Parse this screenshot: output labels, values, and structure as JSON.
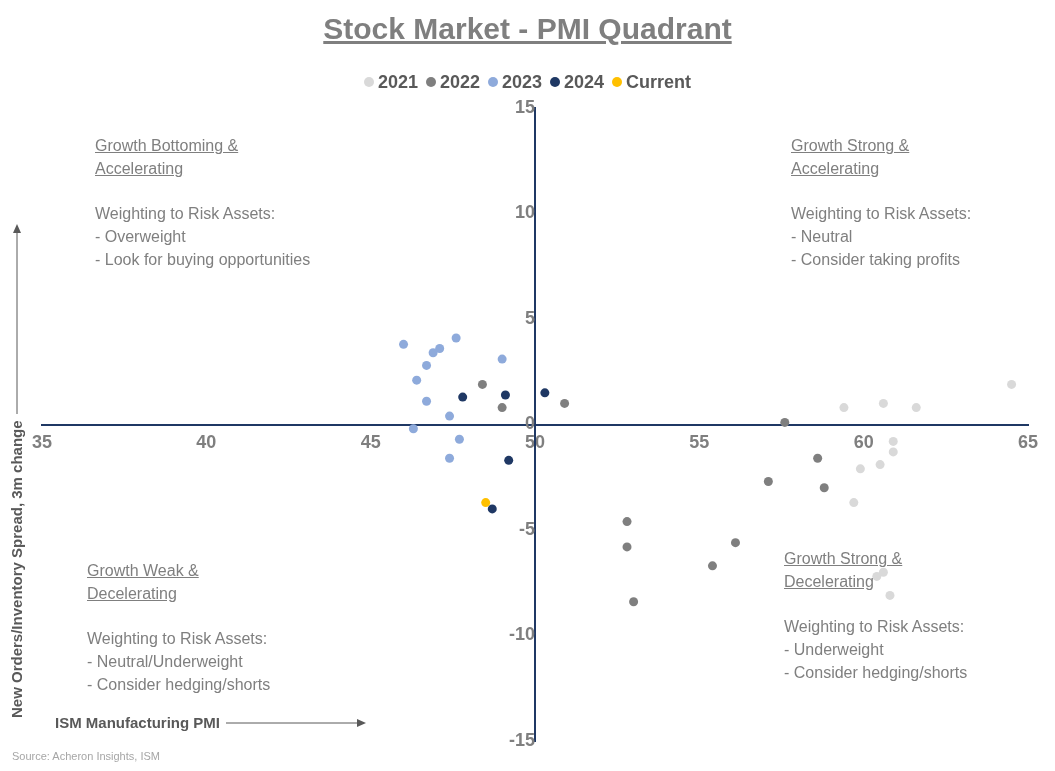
{
  "chart_data": {
    "type": "scatter",
    "title": "Stock Market - PMI Quadrant",
    "x_label": "ISM Manufacturing PMI",
    "y_label": "New Orders/Inventory Spread, 3m change",
    "source": "Source: Acheron Insights, ISM",
    "xlim": [
      35,
      65
    ],
    "xticks": [
      35,
      40,
      45,
      50,
      55,
      60,
      65
    ],
    "ylim": [
      -15,
      15
    ],
    "yticks": [
      -15,
      -10,
      -5,
      0,
      5,
      10,
      15
    ],
    "grid": false,
    "legend": "top",
    "series": [
      {
        "name": "2021",
        "color": "#d9d9d9",
        "x": [
          64.5,
          59.4,
          60.6,
          61.6,
          60.9,
          60.9,
          60.5,
          59.9,
          59.7,
          60.6,
          60.4,
          60.8
        ],
        "values": [
          1.9,
          0.8,
          1.0,
          0.8,
          -0.8,
          -1.3,
          -1.9,
          -2.1,
          -3.7,
          -7.0,
          -7.2,
          -8.1
        ]
      },
      {
        "name": "2022",
        "color": "#7f7f7f",
        "x": [
          57.6,
          58.6,
          58.8,
          57.1,
          56.1,
          55.4,
          52.8,
          52.8,
          53.0,
          50.9,
          48.4,
          49.0
        ],
        "values": [
          0.1,
          -1.6,
          -3.0,
          -2.7,
          -5.6,
          -6.7,
          -4.6,
          -5.8,
          -8.4,
          1.0,
          1.9,
          0.8
        ]
      },
      {
        "name": "2023",
        "color": "#8eaadb",
        "x": [
          46.0,
          47.6,
          47.1,
          46.9,
          46.7,
          49.0,
          46.4,
          46.7,
          47.4,
          46.3,
          47.7,
          47.4
        ],
        "values": [
          3.8,
          4.1,
          3.6,
          3.4,
          2.8,
          3.1,
          2.1,
          1.1,
          0.4,
          -0.2,
          -0.7,
          -1.6
        ]
      },
      {
        "name": "2024",
        "color": "#1f3864",
        "x": [
          47.8,
          49.1,
          50.3,
          49.2,
          48.7
        ],
        "values": [
          1.3,
          1.4,
          1.5,
          -1.7,
          -4.0
        ]
      },
      {
        "name": "Current",
        "color": "#ffc000",
        "x": [
          48.5
        ],
        "values": [
          -3.7
        ]
      }
    ],
    "annotations": [
      {
        "title": "Growth Bottoming & Accelerating",
        "text": [
          "Weighting to Risk Assets:",
          "- Overweight",
          "- Look for buying opportunities"
        ]
      },
      {
        "title": "Growth Strong & Accelerating",
        "text": [
          "Weighting to Risk Assets:",
          "- Neutral",
          "- Consider taking profits"
        ]
      },
      {
        "title": "Growth Weak & Decelerating",
        "text": [
          "Weighting to Risk Assets:",
          "- Neutral/Underweight",
          "- Consider hedging/shorts"
        ]
      },
      {
        "title": "Growth Strong & Decelerating",
        "text": [
          "Weighting to Risk Assets:",
          "- Underweight",
          "- Consider hedging/shorts"
        ]
      }
    ]
  }
}
